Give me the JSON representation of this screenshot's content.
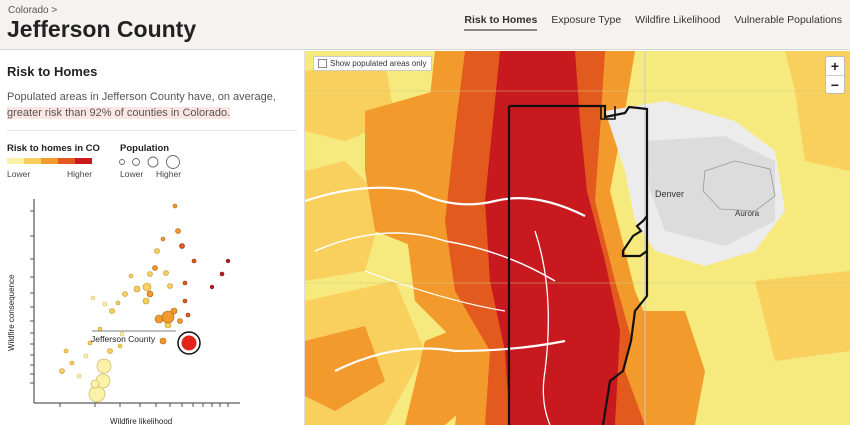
{
  "header": {
    "breadcrumb": "Colorado >",
    "title": "Jefferson County",
    "tabs": [
      {
        "label": "Risk to Homes",
        "active": true
      },
      {
        "label": "Exposure Type",
        "active": false
      },
      {
        "label": "Wildfire Likelihood",
        "active": false
      },
      {
        "label": "Vulnerable Populations",
        "active": false
      }
    ]
  },
  "sidebar": {
    "title": "Risk to Homes",
    "summary": "Populated areas in Jefferson County have, on average, greater risk than 92% of counties in Colorado.",
    "legend": {
      "risk_title": "Risk to homes in CO",
      "risk_low": "Lower",
      "risk_high": "Higher",
      "risk_colors": [
        "#fbf1a8",
        "#f9cf5e",
        "#f39a2c",
        "#e35a1e",
        "#c8191e"
      ],
      "pop_title": "Population",
      "pop_low": "Lower",
      "pop_high": "Higher"
    }
  },
  "chart_data": {
    "type": "scatter",
    "xlabel": "Wildfire likelihood",
    "ylabel": "Wildfire consequence",
    "highlight_label": "Jefferson County"
  },
  "map": {
    "toggle_label": "Show populated areas only",
    "zoom_in": "+",
    "zoom_out": "−",
    "labels": {
      "denver": "Denver",
      "aurora": "Aurora"
    }
  }
}
